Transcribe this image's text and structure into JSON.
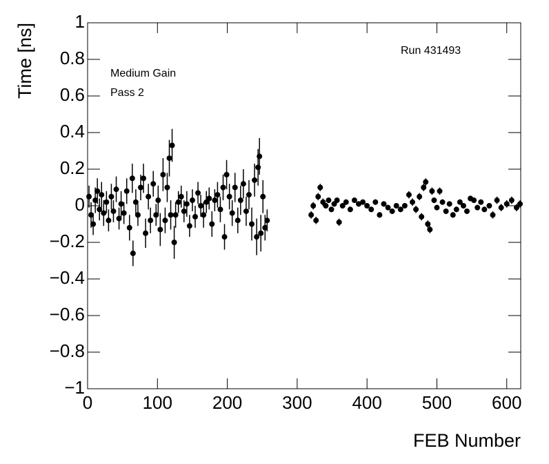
{
  "chart_data": {
    "type": "scatter",
    "x_label": "FEB Number",
    "y_label": "Time [ns]",
    "annotations": [
      "Medium Gain",
      "Pass 2",
      "Run 431493"
    ],
    "xlim": [
      0,
      620
    ],
    "ylim": [
      -1,
      1
    ],
    "xticks": [
      0,
      100,
      200,
      300,
      400,
      500,
      600
    ],
    "yticks": [
      {
        "value": -1,
        "label": "−1"
      },
      {
        "value": -0.8,
        "label": "−0.8"
      },
      {
        "value": -0.6,
        "label": "−0.6"
      },
      {
        "value": -0.4,
        "label": "−0.4"
      },
      {
        "value": -0.2,
        "label": "−0.2"
      },
      0,
      0.2,
      0.4,
      0.6,
      0.8,
      1
    ],
    "series": [
      {
        "color": "#000000",
        "x": [
          2,
          5,
          8,
          11,
          14,
          17,
          20,
          23,
          27,
          30,
          34,
          37,
          41,
          45,
          48,
          52,
          56,
          60,
          64,
          65,
          69,
          72,
          76,
          80,
          83,
          87,
          90,
          94,
          98,
          101,
          104,
          108,
          111,
          114,
          117,
          119,
          121,
          124,
          126,
          130,
          134,
          138,
          142,
          146,
          150,
          154,
          158,
          162,
          166,
          170,
          174,
          178,
          182,
          186,
          190,
          194,
          196,
          199,
          203,
          207,
          211,
          215,
          219,
          223,
          227,
          231,
          235,
          239,
          242,
          244,
          246,
          248,
          251,
          254,
          257,
          320,
          323,
          327,
          330,
          333,
          337,
          341,
          345,
          349,
          353,
          357,
          360,
          365,
          370,
          376,
          382,
          388,
          394,
          400,
          406,
          412,
          418,
          424,
          430,
          436,
          442,
          448,
          454,
          460,
          465,
          470,
          475,
          478,
          481,
          484,
          487,
          490,
          493,
          496,
          500,
          504,
          508,
          513,
          518,
          523,
          528,
          533,
          538,
          543,
          548,
          553,
          558,
          563,
          568,
          575,
          580,
          586,
          592,
          600,
          607,
          614,
          619
        ],
        "values": [
          0.05,
          -0.05,
          -0.1,
          0.03,
          0.08,
          -0.02,
          0.06,
          -0.04,
          0.02,
          -0.08,
          0.05,
          -0.03,
          0.09,
          -0.07,
          0.01,
          -0.04,
          0.08,
          -0.12,
          0.15,
          -0.26,
          0.02,
          -0.05,
          0.1,
          0.15,
          -0.15,
          0.05,
          -0.08,
          0.12,
          -0.05,
          0.03,
          -0.13,
          0.17,
          -0.08,
          0.1,
          0.26,
          -0.05,
          0.33,
          -0.2,
          -0.05,
          0.02,
          0.05,
          -0.03,
          0.01,
          -0.11,
          0.03,
          -0.06,
          0.07,
          0,
          -0.05,
          0.02,
          0.04,
          -0.1,
          0.03,
          0.06,
          -0.02,
          0.1,
          -0.17,
          0.17,
          0.05,
          -0.04,
          0.1,
          -0.08,
          0.03,
          0.12,
          -0.03,
          0.06,
          -0.1,
          0.14,
          -0.17,
          0.21,
          0.27,
          -0.15,
          0.05,
          -0.12,
          -0.08,
          -0.05,
          0,
          -0.08,
          0.05,
          0.1,
          0.02,
          0,
          0.03,
          -0.02,
          0.01,
          0.03,
          -0.09,
          0,
          0.02,
          -0.02,
          0.03,
          0.01,
          0.02,
          0,
          -0.02,
          0.02,
          -0.05,
          0.01,
          -0.01,
          -0.03,
          0,
          -0.02,
          0,
          0.06,
          0.02,
          -0.02,
          0.05,
          -0.06,
          0.1,
          0.13,
          -0.1,
          -0.13,
          0.08,
          0.03,
          -0.01,
          0.08,
          0.02,
          -0.03,
          0.01,
          -0.05,
          -0.02,
          0.02,
          0,
          -0.03,
          0.04,
          0.03,
          -0.01,
          0.02,
          -0.02,
          0,
          -0.05,
          0.03,
          -0.01,
          0.01,
          0.03,
          -0.01,
          0.01
        ],
        "errors": [
          0.06,
          0.07,
          0.06,
          0.07,
          0.07,
          0.06,
          0.07,
          0.07,
          0.06,
          0.06,
          0.07,
          0.06,
          0.07,
          0.06,
          0.07,
          0.06,
          0.07,
          0.07,
          0.08,
          0.07,
          0.07,
          0.06,
          0.07,
          0.08,
          0.08,
          0.07,
          0.07,
          0.07,
          0.06,
          0.08,
          0.09,
          0.09,
          0.07,
          0.08,
          0.1,
          0.08,
          0.09,
          0.09,
          0.07,
          0.06,
          0.06,
          0.06,
          0.07,
          0.06,
          0.06,
          0.06,
          0.06,
          0.06,
          0.07,
          0.06,
          0.06,
          0.07,
          0.06,
          0.07,
          0.07,
          0.07,
          0.07,
          0.08,
          0.07,
          0.07,
          0.08,
          0.07,
          0.08,
          0.08,
          0.08,
          0.08,
          0.09,
          0.09,
          0.1,
          0.1,
          0.1,
          0.1,
          0.09,
          0.07,
          0.06,
          0.02,
          0.02,
          0.02,
          0.02,
          0.02,
          0.02,
          0.015,
          0.015,
          0.015,
          0.015,
          0.015,
          0.02,
          0.015,
          0.015,
          0.015,
          0.015,
          0.015,
          0.015,
          0.015,
          0.015,
          0.015,
          0.015,
          0.015,
          0.015,
          0.015,
          0.015,
          0.015,
          0.015,
          0.02,
          0.02,
          0.02,
          0.02,
          0.02,
          0.02,
          0.02,
          0.02,
          0.02,
          0.02,
          0.015,
          0.015,
          0.02,
          0.015,
          0.015,
          0.015,
          0.015,
          0.015,
          0.015,
          0.015,
          0.015,
          0.015,
          0.015,
          0.015,
          0.015,
          0.015,
          0.015,
          0.02,
          0.02,
          0.02,
          0.02,
          0.02,
          0.02,
          0.02
        ]
      }
    ]
  }
}
